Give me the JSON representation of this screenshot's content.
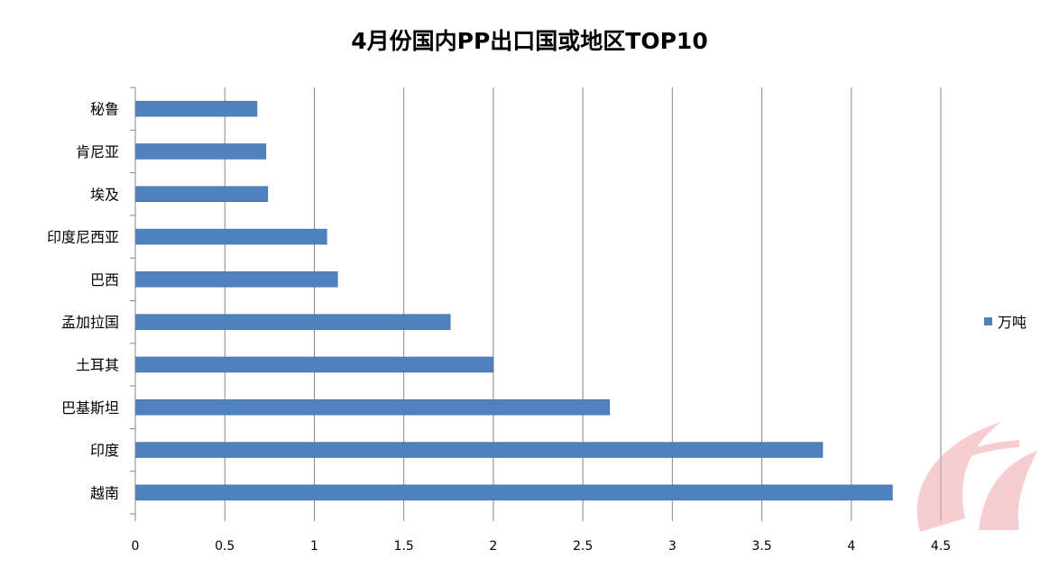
{
  "chart_data": {
    "type": "bar",
    "orientation": "horizontal",
    "title": "4月份国内PP出口国或地区TOP10",
    "categories": [
      "越南",
      "印度",
      "巴基斯坦",
      "土耳其",
      "孟加拉国",
      "巴西",
      "印度尼西亚",
      "埃及",
      "肯尼亚",
      "秘鲁"
    ],
    "series": [
      {
        "name": "万吨",
        "color": "#4f81bd",
        "values": [
          4.23,
          3.84,
          2.65,
          2.0,
          1.76,
          1.13,
          1.07,
          0.74,
          0.73,
          0.68
        ]
      }
    ],
    "xlim": [
      0,
      4.5
    ],
    "xticks": [
      "0",
      "0.5",
      "1",
      "1.5",
      "2",
      "2.5",
      "3",
      "3.5",
      "4",
      "4.5"
    ],
    "xlabel": "",
    "ylabel": "",
    "grid": "vertical major gridlines",
    "legend": "right"
  }
}
